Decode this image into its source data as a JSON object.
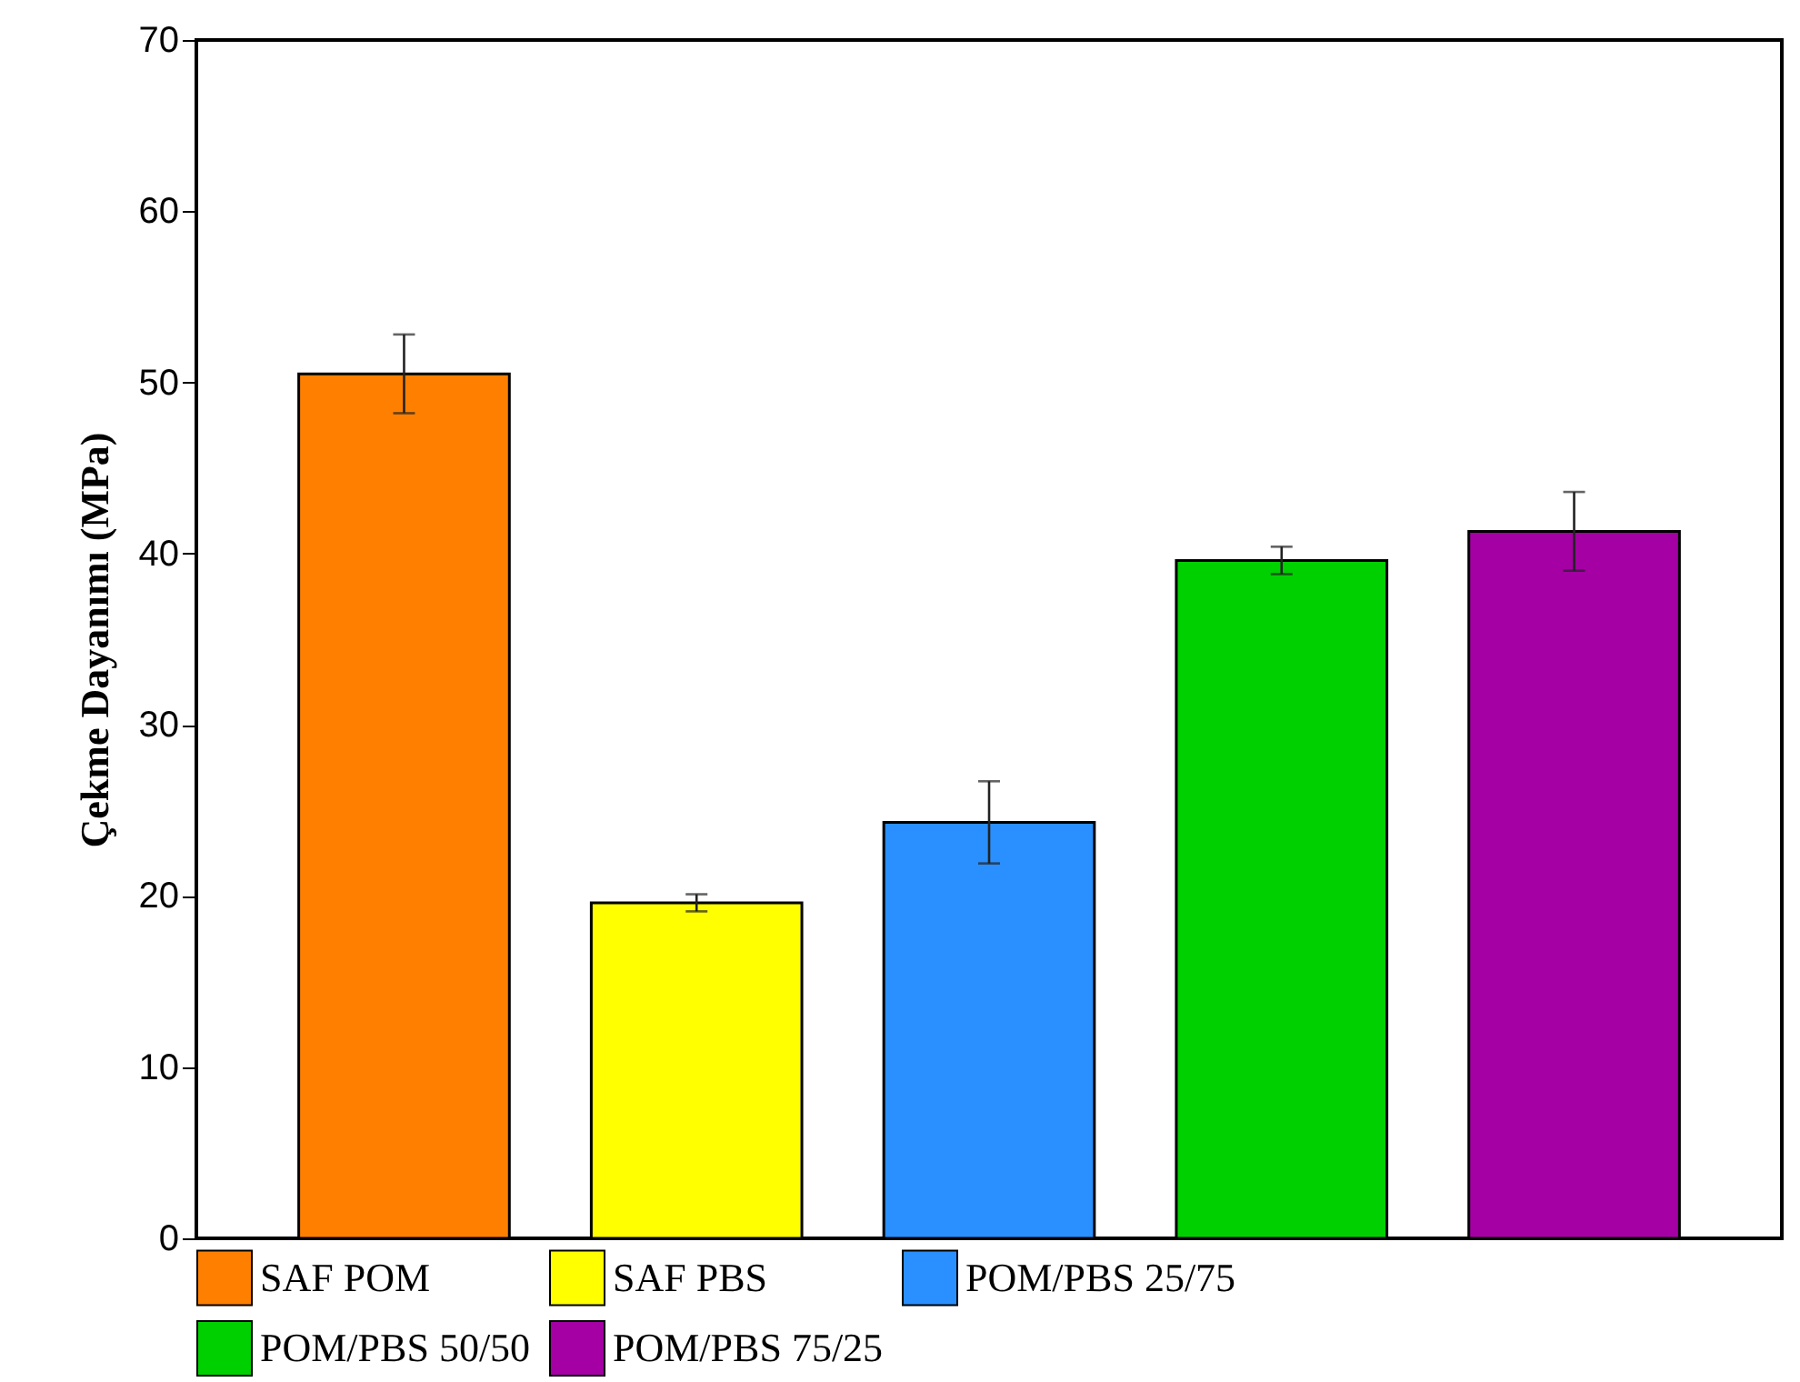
{
  "chart_data": {
    "type": "bar",
    "stacked": true,
    "ylabel": "Çekme Dayanımı (MPa)",
    "categories": [
      null,
      null,
      null,
      null,
      null
    ],
    "series": [
      {
        "name": "SAF POM",
        "color": "#ff8000",
        "values": [
          50.5,
          null,
          null,
          null,
          null
        ],
        "errors": [
          2.3,
          null,
          null,
          null,
          null
        ]
      },
      {
        "name": "SAF PBS",
        "color": "#ffff00",
        "values": [
          null,
          19.6,
          null,
          null,
          null
        ],
        "errors": [
          null,
          0.5,
          null,
          null,
          null
        ]
      },
      {
        "name": "POM/PBS 25/75",
        "color": "#2a8fff",
        "values": [
          null,
          null,
          24.3,
          null,
          null
        ],
        "errors": [
          null,
          null,
          2.4,
          null,
          null
        ]
      },
      {
        "name": "POM/PBS 50/50",
        "color": "#00d000",
        "values": [
          null,
          null,
          null,
          39.6,
          null
        ],
        "errors": [
          null,
          null,
          null,
          0.8,
          null
        ]
      },
      {
        "name": "POM/PBS 75/25",
        "color": "#a400a4",
        "values": [
          null,
          null,
          null,
          null,
          41.3
        ],
        "errors": [
          null,
          null,
          null,
          null,
          2.3
        ]
      }
    ],
    "ylim": [
      0,
      70
    ],
    "yticks": [
      0,
      10,
      20,
      30,
      40,
      50,
      60,
      70
    ],
    "grid": false,
    "legend": "bottom",
    "tick_labels": "y"
  }
}
